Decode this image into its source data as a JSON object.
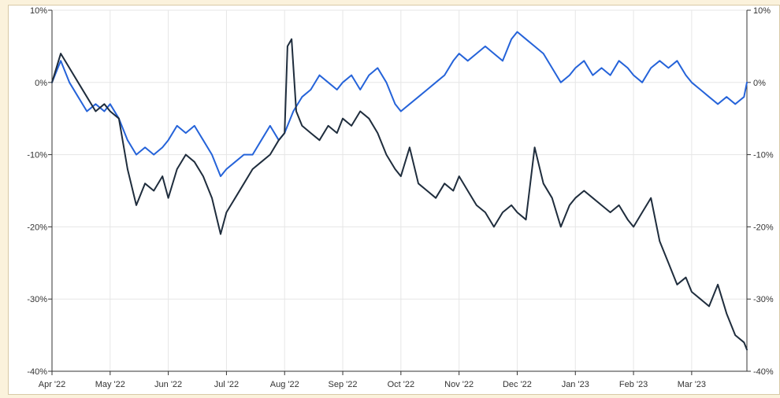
{
  "colors": {
    "background": "#fbf2dc",
    "plot": "#ffffff",
    "grid": "#e6e6e6",
    "axis": "#333333"
  },
  "chart_data": {
    "type": "line",
    "grid": true,
    "legend": "none",
    "ylim": [
      -40,
      10
    ],
    "y_ticks": [
      {
        "value": 10,
        "label": "10%"
      },
      {
        "value": 0,
        "label": "0%"
      },
      {
        "value": -10,
        "label": "-10%"
      },
      {
        "value": -20,
        "label": "-20%"
      },
      {
        "value": -30,
        "label": "-30%"
      },
      {
        "value": -40,
        "label": "-40%"
      }
    ],
    "x_ticks": [
      "Apr '22",
      "May '22",
      "Jun '22",
      "Jul '22",
      "Aug '22",
      "Sep '22",
      "Oct '22",
      "Nov '22",
      "Dec '22",
      "Jan '23",
      "Feb '23",
      "Mar '23"
    ],
    "x_range_months": [
      0,
      11.95
    ],
    "series": [
      {
        "color": "#2563d9",
        "x": [
          0,
          0.15,
          0.3,
          0.45,
          0.6,
          0.75,
          0.9,
          1.0,
          1.15,
          1.3,
          1.45,
          1.6,
          1.75,
          1.9,
          2.0,
          2.15,
          2.3,
          2.45,
          2.6,
          2.75,
          2.9,
          3.0,
          3.15,
          3.3,
          3.45,
          3.6,
          3.75,
          3.9,
          4.0,
          4.15,
          4.3,
          4.45,
          4.6,
          4.75,
          4.9,
          5.0,
          5.15,
          5.3,
          5.45,
          5.6,
          5.75,
          5.9,
          6.0,
          6.15,
          6.3,
          6.45,
          6.6,
          6.75,
          6.9,
          7.0,
          7.15,
          7.3,
          7.45,
          7.6,
          7.75,
          7.9,
          8.0,
          8.15,
          8.3,
          8.45,
          8.6,
          8.75,
          8.9,
          9.0,
          9.15,
          9.3,
          9.45,
          9.6,
          9.75,
          9.9,
          10.0,
          10.15,
          10.3,
          10.45,
          10.6,
          10.75,
          10.9,
          11.0,
          11.15,
          11.3,
          11.45,
          11.6,
          11.75,
          11.9,
          11.95
        ],
        "values": [
          0,
          3,
          0,
          -2,
          -4,
          -3,
          -4,
          -3,
          -5,
          -8,
          -10,
          -9,
          -10,
          -9,
          -8,
          -6,
          -7,
          -6,
          -8,
          -10,
          -13,
          -12,
          -11,
          -10,
          -10,
          -8,
          -6,
          -8,
          -7,
          -4,
          -2,
          -1,
          1,
          0,
          -1,
          0,
          1,
          -1,
          1,
          2,
          0,
          -3,
          -4,
          -3,
          -2,
          -1,
          0,
          1,
          3,
          4,
          3,
          4,
          5,
          4,
          3,
          6,
          7,
          6,
          5,
          4,
          2,
          0,
          1,
          2,
          3,
          1,
          2,
          1,
          3,
          2,
          1,
          0,
          2,
          3,
          2,
          3,
          1,
          0,
          -1,
          -2,
          -3,
          -2,
          -3,
          -2,
          0
        ]
      },
      {
        "color": "#1f2d3d",
        "x": [
          0,
          0.15,
          0.3,
          0.45,
          0.6,
          0.75,
          0.9,
          1.0,
          1.15,
          1.3,
          1.45,
          1.6,
          1.75,
          1.9,
          2.0,
          2.15,
          2.3,
          2.45,
          2.6,
          2.75,
          2.9,
          3.0,
          3.15,
          3.3,
          3.45,
          3.6,
          3.75,
          3.9,
          4.0,
          4.05,
          4.12,
          4.2,
          4.3,
          4.45,
          4.6,
          4.75,
          4.9,
          5.0,
          5.15,
          5.3,
          5.45,
          5.6,
          5.75,
          5.9,
          6.0,
          6.15,
          6.3,
          6.45,
          6.6,
          6.75,
          6.9,
          7.0,
          7.15,
          7.3,
          7.45,
          7.6,
          7.75,
          7.9,
          8.0,
          8.15,
          8.3,
          8.45,
          8.6,
          8.75,
          8.9,
          9.0,
          9.15,
          9.3,
          9.45,
          9.6,
          9.75,
          9.9,
          10.0,
          10.15,
          10.3,
          10.45,
          10.6,
          10.75,
          10.9,
          11.0,
          11.15,
          11.3,
          11.45,
          11.6,
          11.75,
          11.9,
          11.95
        ],
        "values": [
          0,
          4,
          2,
          0,
          -2,
          -4,
          -3,
          -4,
          -5,
          -12,
          -17,
          -14,
          -15,
          -13,
          -16,
          -12,
          -10,
          -11,
          -13,
          -16,
          -21,
          -18,
          -16,
          -14,
          -12,
          -11,
          -10,
          -8,
          -7,
          5,
          6,
          -4,
          -6,
          -7,
          -8,
          -6,
          -7,
          -5,
          -6,
          -4,
          -5,
          -7,
          -10,
          -12,
          -13,
          -9,
          -14,
          -15,
          -16,
          -14,
          -15,
          -13,
          -15,
          -17,
          -18,
          -20,
          -18,
          -17,
          -18,
          -19,
          -9,
          -14,
          -16,
          -20,
          -17,
          -16,
          -15,
          -16,
          -17,
          -18,
          -17,
          -19,
          -20,
          -18,
          -16,
          -22,
          -25,
          -28,
          -27,
          -29,
          -30,
          -31,
          -28,
          -32,
          -35,
          -36,
          -37
        ]
      }
    ]
  }
}
